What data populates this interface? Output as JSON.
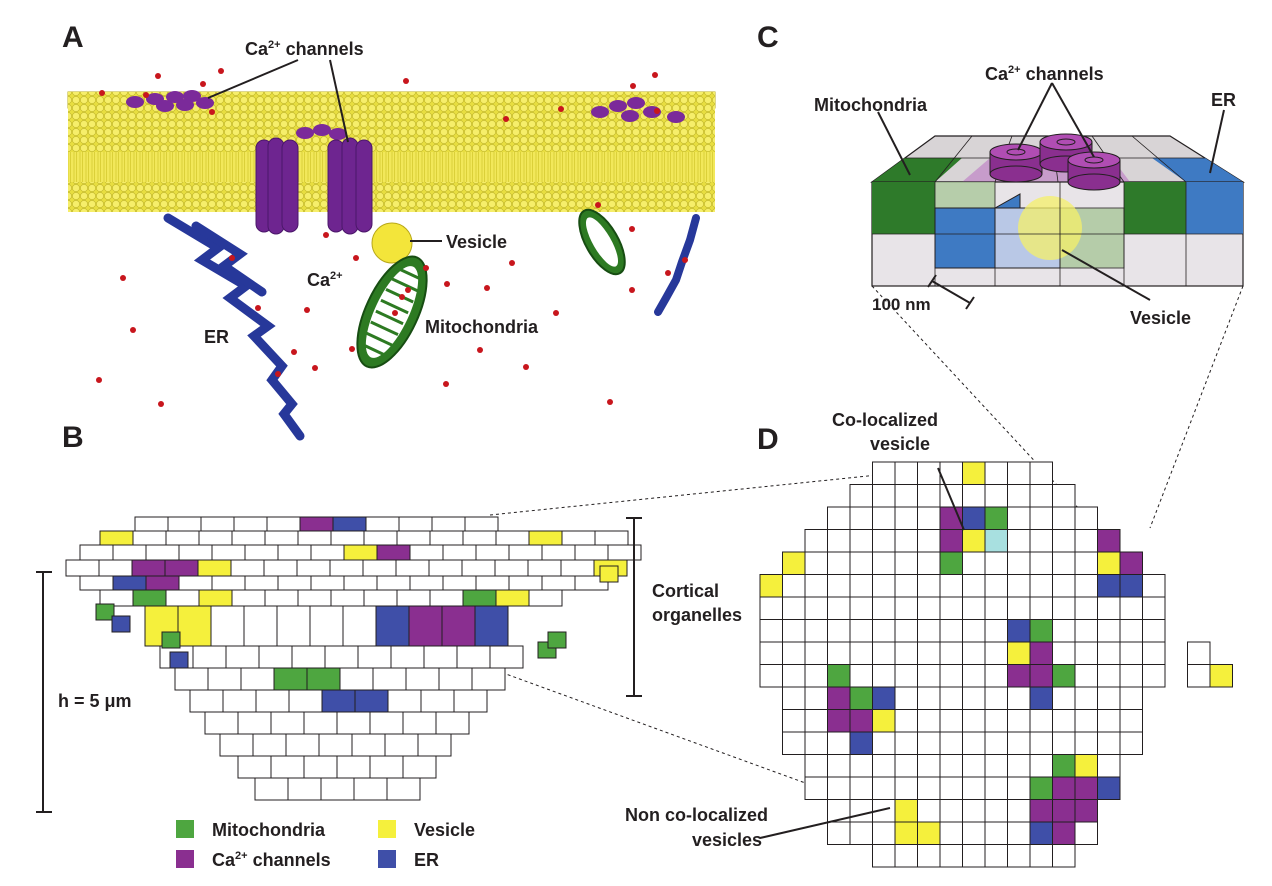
{
  "panels": {
    "a": "A",
    "b": "B",
    "c": "C",
    "d": "D"
  },
  "panel_a": {
    "ca_channels": "Ca",
    "ca_channels_sup": "2+",
    "ca_channels_tail": " channels",
    "vesicle": "Vesicle",
    "ca_ion": "Ca",
    "ca_ion_sup": "2+",
    "er": "ER",
    "mitochondria": "Mitochondria"
  },
  "panel_b": {
    "cortical": "Cortical",
    "organelles": "organelles",
    "height": "h = 5 μm"
  },
  "panel_c": {
    "mitochondria": "Mitochondria",
    "ca_channels": "Ca",
    "ca_channels_sup": "2+",
    "ca_channels_tail": " channels",
    "er": "ER",
    "scale": "100 nm",
    "vesicle": "Vesicle"
  },
  "panel_d": {
    "colocalized_1": "Co-localized",
    "colocalized_2": "vesicle",
    "noncolocalized_1": "Non co-localized",
    "noncolocalized_2": "vesicles"
  },
  "legend": {
    "mitochondria": "Mitochondria",
    "vesicle": "Vesicle",
    "ca_channels": "Ca",
    "ca_channels_sup": "2+",
    "ca_channels_tail": " channels",
    "er": "ER"
  },
  "colors": {
    "membrane": "#f2e94e",
    "channel": "#7b2a9a",
    "mitochondria": "#4ea640",
    "vesicle": "#f5f03c",
    "ca_channel": "#8a2f90",
    "er": "#3f4fa8",
    "er_dark": "#2a3a9a",
    "ion": "#c8161d"
  }
}
